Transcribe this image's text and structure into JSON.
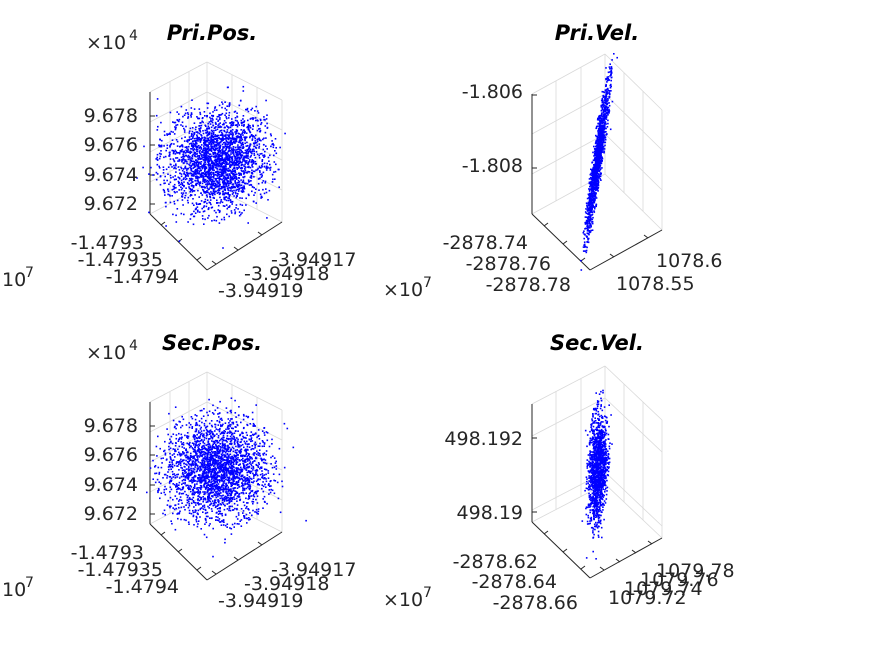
{
  "chart_data": [
    {
      "type": "scatter",
      "title": "Pri.Pos.",
      "color": "#0000ff",
      "z_multiplier": {
        "base": "×10",
        "exp": "4"
      },
      "xy_multiplier": {
        "base": "10",
        "exp": "7"
      },
      "z_ticks": [
        "9.678",
        "9.676",
        "9.674",
        "9.672"
      ],
      "left_ticks": [
        "-1.4793",
        "-1.47935",
        "-1.4794"
      ],
      "right_ticks": [
        "-3.94917",
        "-3.94918",
        "-3.94919"
      ],
      "cloud": {
        "center_z": 9.675,
        "spread_z": 0.0012,
        "center_left": -1.47936,
        "spread_left": 2.5e-05,
        "center_right": -3.949181,
        "spread_right": 5e-06,
        "shape": "ellipse"
      }
    },
    {
      "type": "scatter",
      "title": "Pri.Vel.",
      "color": "#0000ff",
      "z_multiplier": null,
      "xy_multiplier": {
        "base": "×10",
        "exp": "7"
      },
      "z_ticks": [
        "-1.806",
        "-1.808"
      ],
      "left_ticks": [
        "-2878.74",
        "-2878.76",
        "-2878.78"
      ],
      "right_ticks": [
        "1078.6",
        "1078.55"
      ],
      "cloud": {
        "center_z": -1.8075,
        "spread_z": 0.0012,
        "center_left": -2878.76,
        "spread_left": 0.01,
        "center_right": 1078.58,
        "spread_right": 0.01,
        "shape": "needle"
      }
    },
    {
      "type": "scatter",
      "title": "Sec.Pos.",
      "color": "#0000ff",
      "z_multiplier": {
        "base": "×10",
        "exp": "4"
      },
      "xy_multiplier": {
        "base": "10",
        "exp": "7"
      },
      "z_ticks": [
        "9.678",
        "9.676",
        "9.674",
        "9.672"
      ],
      "left_ticks": [
        "-1.4793",
        "-1.47935",
        "-1.4794"
      ],
      "right_ticks": [
        "-3.94917",
        "-3.94918",
        "-3.94919"
      ],
      "cloud": {
        "center_z": 9.675,
        "spread_z": 0.0012,
        "center_left": -1.47936,
        "spread_left": 2.5e-05,
        "center_right": -3.949181,
        "spread_right": 5e-06,
        "shape": "ellipse"
      }
    },
    {
      "type": "scatter",
      "title": "Sec.Vel.",
      "color": "#0000ff",
      "z_multiplier": null,
      "xy_multiplier": {
        "base": "×10",
        "exp": "7"
      },
      "z_ticks": [
        "498.192",
        "498.19"
      ],
      "left_ticks": [
        "-2878.62",
        "-2878.64",
        "-2878.66"
      ],
      "right_ticks": [
        "1079.78",
        "1079.76",
        "1079.74",
        "1079.72"
      ],
      "cloud": {
        "center_z": 498.191,
        "spread_z": 0.0008,
        "center_left": -2878.64,
        "spread_left": 0.01,
        "center_right": 1079.75,
        "spread_right": 0.01,
        "shape": "narrow"
      }
    }
  ]
}
